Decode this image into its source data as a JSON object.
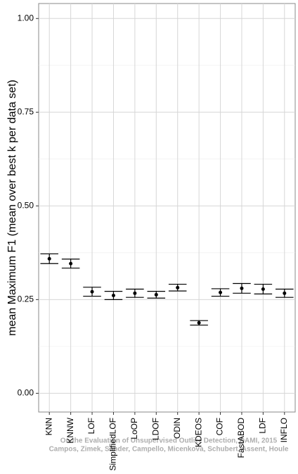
{
  "chart_data": {
    "type": "errorbar",
    "y_label": "mean Maximum F1 (mean over best k per data set)",
    "annotations": [
      "On the Evaluation of Unsupervised Outlier Detection, DAMI, 2015",
      "Campos, Zimek, Sander, Campello, Micenkova, Schubert, Assent, Houle"
    ],
    "categories": [
      "KNN",
      "KNNW",
      "LOF",
      "SimplifiedLOF",
      "LoOP",
      "LDOF",
      "ODIN",
      "KDEOS",
      "COF",
      "FastABOD",
      "LDF",
      "INFLO"
    ],
    "values": [
      0.359,
      0.346,
      0.271,
      0.261,
      0.267,
      0.263,
      0.282,
      0.188,
      0.269,
      0.28,
      0.278,
      0.267
    ],
    "errors": [
      0.013,
      0.012,
      0.012,
      0.011,
      0.011,
      0.009,
      0.009,
      0.006,
      0.01,
      0.013,
      0.013,
      0.011
    ],
    "color": "#000000",
    "ylim": [
      -0.05,
      1.04
    ],
    "yticks": [
      {
        "value": 0,
        "label": "0.00"
      },
      {
        "value": 0.25,
        "label": "0.25"
      },
      {
        "value": 0.5,
        "label": "0.50"
      },
      {
        "value": 0.75,
        "label": "0.75"
      },
      {
        "value": 1,
        "label": "1.00"
      }
    ],
    "minor_yticks": [
      0.125,
      0.375,
      0.625,
      0.875
    ],
    "grid": true
  }
}
